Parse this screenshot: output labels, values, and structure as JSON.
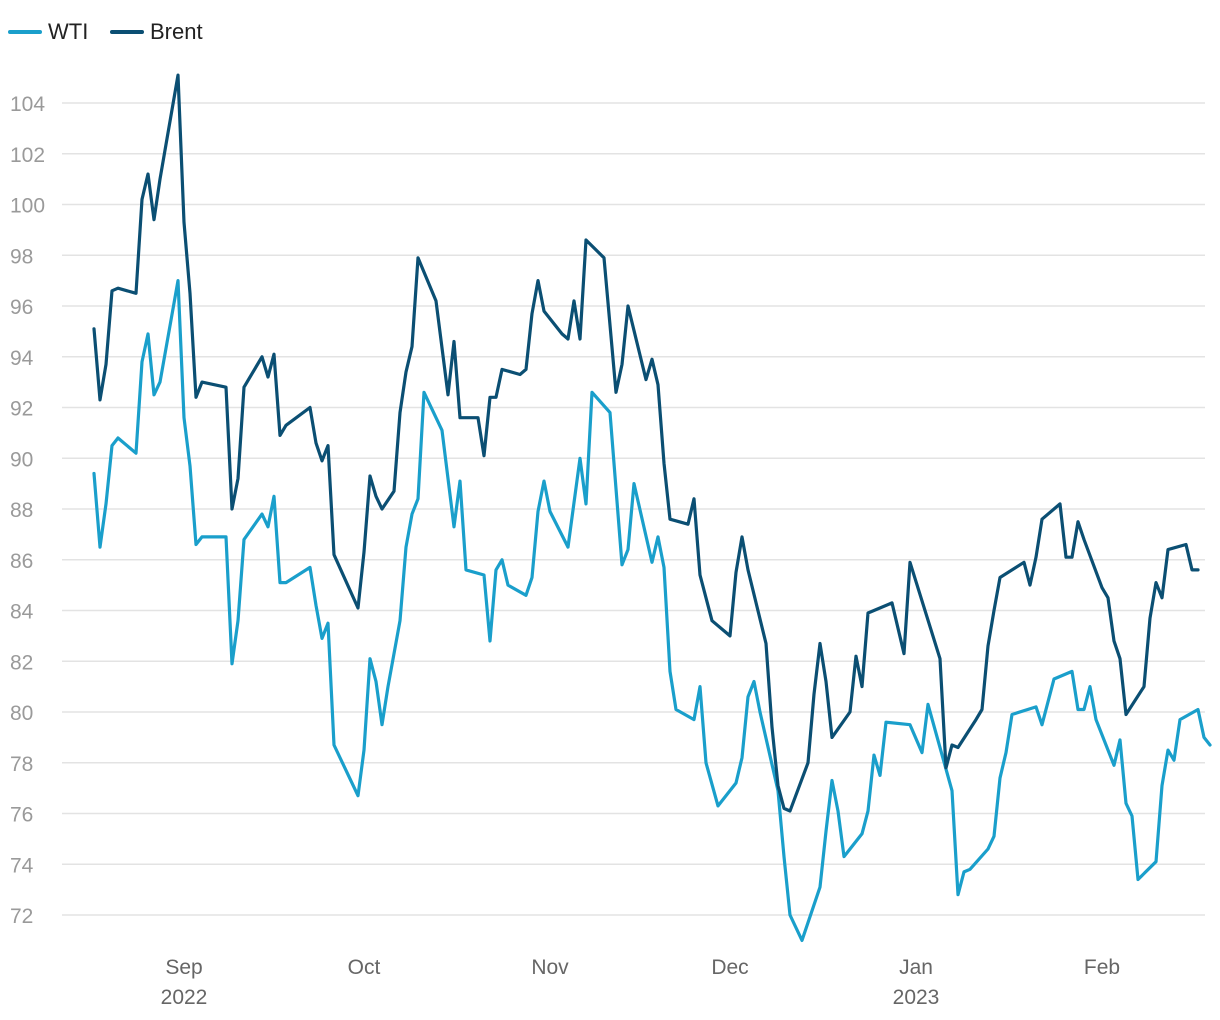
{
  "chart_data": {
    "type": "line",
    "title": "",
    "xlabel": "",
    "ylabel": "",
    "ylim": [
      71,
      106
    ],
    "yticks": [
      72,
      74,
      76,
      78,
      80,
      82,
      84,
      86,
      88,
      90,
      92,
      94,
      96,
      98,
      100,
      102,
      104
    ],
    "grid": true,
    "legend_position": "top-left",
    "x_ticks": [
      {
        "date": "2022-09-01",
        "label": "Sep",
        "sublabel": "2022"
      },
      {
        "date": "2022-10-01",
        "label": "Oct",
        "sublabel": ""
      },
      {
        "date": "2022-11-01",
        "label": "Nov",
        "sublabel": ""
      },
      {
        "date": "2022-12-01",
        "label": "Dec",
        "sublabel": ""
      },
      {
        "date": "2023-01-01",
        "label": "Jan",
        "sublabel": "2023"
      },
      {
        "date": "2023-02-01",
        "label": "Feb",
        "sublabel": ""
      }
    ],
    "x_start": "2022-08-15",
    "x_end": "2023-02-21",
    "series": [
      {
        "name": "WTI",
        "color": "#1a9fcb",
        "points": [
          [
            "2022-08-17",
            89.4
          ],
          [
            "2022-08-18",
            86.5
          ],
          [
            "2022-08-19",
            88.2
          ],
          [
            "2022-08-20",
            90.5
          ],
          [
            "2022-08-21",
            90.8
          ],
          [
            "2022-08-24",
            90.2
          ],
          [
            "2022-08-25",
            93.8
          ],
          [
            "2022-08-26",
            94.9
          ],
          [
            "2022-08-27",
            92.5
          ],
          [
            "2022-08-28",
            93.0
          ],
          [
            "2022-08-31",
            97.0
          ],
          [
            "2022-09-01",
            91.6
          ],
          [
            "2022-09-02",
            89.7
          ],
          [
            "2022-09-03",
            86.6
          ],
          [
            "2022-09-04",
            86.9
          ],
          [
            "2022-09-08",
            86.9
          ],
          [
            "2022-09-09",
            81.9
          ],
          [
            "2022-09-10",
            83.6
          ],
          [
            "2022-09-11",
            86.8
          ],
          [
            "2022-09-14",
            87.8
          ],
          [
            "2022-09-15",
            87.3
          ],
          [
            "2022-09-16",
            88.5
          ],
          [
            "2022-09-17",
            85.1
          ],
          [
            "2022-09-18",
            85.1
          ],
          [
            "2022-09-22",
            85.7
          ],
          [
            "2022-09-23",
            84.2
          ],
          [
            "2022-09-24",
            82.9
          ],
          [
            "2022-09-25",
            83.5
          ],
          [
            "2022-09-26",
            78.7
          ],
          [
            "2022-09-30",
            76.7
          ],
          [
            "2022-10-01",
            78.5
          ],
          [
            "2022-10-02",
            82.1
          ],
          [
            "2022-10-03",
            81.2
          ],
          [
            "2022-10-04",
            79.5
          ],
          [
            "2022-10-05",
            81.0
          ],
          [
            "2022-10-07",
            83.6
          ],
          [
            "2022-10-08",
            86.5
          ],
          [
            "2022-10-09",
            87.8
          ],
          [
            "2022-10-10",
            88.4
          ],
          [
            "2022-10-11",
            92.6
          ],
          [
            "2022-10-14",
            91.1
          ],
          [
            "2022-10-16",
            87.3
          ],
          [
            "2022-10-17",
            89.1
          ],
          [
            "2022-10-18",
            85.6
          ],
          [
            "2022-10-21",
            85.4
          ],
          [
            "2022-10-22",
            82.8
          ],
          [
            "2022-10-23",
            85.6
          ],
          [
            "2022-10-24",
            86.0
          ],
          [
            "2022-10-25",
            85.0
          ],
          [
            "2022-10-28",
            84.6
          ],
          [
            "2022-10-29",
            85.3
          ],
          [
            "2022-10-30",
            87.9
          ],
          [
            "2022-10-31",
            89.1
          ],
          [
            "2022-11-01",
            87.9
          ],
          [
            "2022-11-04",
            86.5
          ],
          [
            "2022-11-06",
            90.0
          ],
          [
            "2022-11-07",
            88.2
          ],
          [
            "2022-11-08",
            92.6
          ],
          [
            "2022-11-11",
            91.8
          ],
          [
            "2022-11-13",
            85.8
          ],
          [
            "2022-11-14",
            86.4
          ],
          [
            "2022-11-15",
            89.0
          ],
          [
            "2022-11-18",
            85.9
          ],
          [
            "2022-11-19",
            86.9
          ],
          [
            "2022-11-20",
            85.7
          ],
          [
            "2022-11-21",
            81.6
          ],
          [
            "2022-11-22",
            80.1
          ],
          [
            "2022-11-25",
            79.7
          ],
          [
            "2022-11-26",
            81.0
          ],
          [
            "2022-11-27",
            78.0
          ],
          [
            "2022-11-29",
            76.3
          ],
          [
            "2022-12-02",
            77.2
          ],
          [
            "2022-12-03",
            78.2
          ],
          [
            "2022-12-04",
            80.6
          ],
          [
            "2022-12-05",
            81.2
          ],
          [
            "2022-12-06",
            80.0
          ],
          [
            "2022-12-09",
            76.9
          ],
          [
            "2022-12-10",
            74.3
          ],
          [
            "2022-12-11",
            72.0
          ],
          [
            "2022-12-13",
            71.0
          ],
          [
            "2022-12-16",
            73.1
          ],
          [
            "2022-12-17",
            75.3
          ],
          [
            "2022-12-18",
            77.3
          ],
          [
            "2022-12-19",
            76.1
          ],
          [
            "2022-12-20",
            74.3
          ],
          [
            "2022-12-23",
            75.2
          ],
          [
            "2022-12-24",
            76.1
          ],
          [
            "2022-12-25",
            78.3
          ],
          [
            "2022-12-26",
            77.5
          ],
          [
            "2022-12-27",
            79.6
          ],
          [
            "2022-12-31",
            79.5
          ],
          [
            "2023-01-02",
            78.4
          ],
          [
            "2023-01-03",
            80.3
          ],
          [
            "2023-01-07",
            76.9
          ],
          [
            "2023-01-08",
            72.8
          ],
          [
            "2023-01-09",
            73.7
          ],
          [
            "2023-01-10",
            73.8
          ],
          [
            "2023-01-13",
            74.6
          ],
          [
            "2023-01-14",
            75.1
          ],
          [
            "2023-01-15",
            77.4
          ],
          [
            "2023-01-16",
            78.4
          ],
          [
            "2023-01-17",
            79.9
          ],
          [
            "2023-01-21",
            80.2
          ],
          [
            "2023-01-22",
            79.5
          ],
          [
            "2023-01-24",
            81.3
          ],
          [
            "2023-01-27",
            81.6
          ],
          [
            "2023-01-28",
            80.1
          ],
          [
            "2023-01-29",
            80.1
          ],
          [
            "2023-01-30",
            81.0
          ],
          [
            "2023-01-31",
            79.7
          ],
          [
            "2023-02-03",
            77.9
          ],
          [
            "2023-02-04",
            78.9
          ],
          [
            "2023-02-05",
            76.4
          ],
          [
            "2023-02-06",
            75.9
          ],
          [
            "2023-02-07",
            73.4
          ],
          [
            "2023-02-10",
            74.1
          ],
          [
            "2023-02-11",
            77.1
          ],
          [
            "2023-02-12",
            78.5
          ],
          [
            "2023-02-13",
            78.1
          ],
          [
            "2023-02-14",
            79.7
          ],
          [
            "2023-02-17",
            80.1
          ],
          [
            "2023-02-18",
            79.0
          ],
          [
            "2023-02-19",
            78.7
          ]
        ]
      },
      {
        "name": "Brent",
        "color": "#0b4f73",
        "points": [
          [
            "2022-08-17",
            95.1
          ],
          [
            "2022-08-18",
            92.3
          ],
          [
            "2022-08-19",
            93.7
          ],
          [
            "2022-08-20",
            96.6
          ],
          [
            "2022-08-21",
            96.7
          ],
          [
            "2022-08-24",
            96.5
          ],
          [
            "2022-08-25",
            100.2
          ],
          [
            "2022-08-26",
            101.2
          ],
          [
            "2022-08-27",
            99.4
          ],
          [
            "2022-08-28",
            101.0
          ],
          [
            "2022-08-31",
            105.1
          ],
          [
            "2022-09-01",
            99.3
          ],
          [
            "2022-09-02",
            96.5
          ],
          [
            "2022-09-03",
            92.4
          ],
          [
            "2022-09-04",
            93.0
          ],
          [
            "2022-09-08",
            92.8
          ],
          [
            "2022-09-09",
            88.0
          ],
          [
            "2022-09-10",
            89.2
          ],
          [
            "2022-09-11",
            92.8
          ],
          [
            "2022-09-14",
            94.0
          ],
          [
            "2022-09-15",
            93.2
          ],
          [
            "2022-09-16",
            94.1
          ],
          [
            "2022-09-17",
            90.9
          ],
          [
            "2022-09-18",
            91.3
          ],
          [
            "2022-09-22",
            92.0
          ],
          [
            "2022-09-23",
            90.6
          ],
          [
            "2022-09-24",
            89.9
          ],
          [
            "2022-09-25",
            90.5
          ],
          [
            "2022-09-26",
            86.2
          ],
          [
            "2022-09-30",
            84.1
          ],
          [
            "2022-10-01",
            86.3
          ],
          [
            "2022-10-02",
            89.3
          ],
          [
            "2022-10-03",
            88.5
          ],
          [
            "2022-10-04",
            88.0
          ],
          [
            "2022-10-06",
            88.7
          ],
          [
            "2022-10-07",
            91.8
          ],
          [
            "2022-10-08",
            93.4
          ],
          [
            "2022-10-09",
            94.4
          ],
          [
            "2022-10-10",
            97.9
          ],
          [
            "2022-10-13",
            96.2
          ],
          [
            "2022-10-15",
            92.5
          ],
          [
            "2022-10-16",
            94.6
          ],
          [
            "2022-10-17",
            91.6
          ],
          [
            "2022-10-20",
            91.6
          ],
          [
            "2022-10-21",
            90.1
          ],
          [
            "2022-10-22",
            92.4
          ],
          [
            "2022-10-23",
            92.4
          ],
          [
            "2022-10-24",
            93.5
          ],
          [
            "2022-10-27",
            93.3
          ],
          [
            "2022-10-28",
            93.5
          ],
          [
            "2022-10-29",
            95.7
          ],
          [
            "2022-10-30",
            97.0
          ],
          [
            "2022-10-31",
            95.8
          ],
          [
            "2022-11-03",
            94.9
          ],
          [
            "2022-11-04",
            94.7
          ],
          [
            "2022-11-05",
            96.2
          ],
          [
            "2022-11-06",
            94.7
          ],
          [
            "2022-11-07",
            98.6
          ],
          [
            "2022-11-10",
            97.9
          ],
          [
            "2022-11-12",
            92.6
          ],
          [
            "2022-11-13",
            93.7
          ],
          [
            "2022-11-14",
            96.0
          ],
          [
            "2022-11-17",
            93.1
          ],
          [
            "2022-11-18",
            93.9
          ],
          [
            "2022-11-19",
            92.9
          ],
          [
            "2022-11-20",
            89.8
          ],
          [
            "2022-11-21",
            87.6
          ],
          [
            "2022-11-24",
            87.4
          ],
          [
            "2022-11-25",
            88.4
          ],
          [
            "2022-11-26",
            85.4
          ],
          [
            "2022-11-28",
            83.6
          ],
          [
            "2022-12-01",
            83.0
          ],
          [
            "2022-12-02",
            85.5
          ],
          [
            "2022-12-03",
            86.9
          ],
          [
            "2022-12-04",
            85.6
          ],
          [
            "2022-12-07",
            82.7
          ],
          [
            "2022-12-08",
            79.4
          ],
          [
            "2022-12-09",
            77.1
          ],
          [
            "2022-12-10",
            76.2
          ],
          [
            "2022-12-11",
            76.1
          ],
          [
            "2022-12-14",
            78.0
          ],
          [
            "2022-12-15",
            80.7
          ],
          [
            "2022-12-16",
            82.7
          ],
          [
            "2022-12-17",
            81.2
          ],
          [
            "2022-12-18",
            79.0
          ],
          [
            "2022-12-21",
            80.0
          ],
          [
            "2022-12-22",
            82.2
          ],
          [
            "2022-12-23",
            81.0
          ],
          [
            "2022-12-24",
            83.9
          ],
          [
            "2022-12-28",
            84.3
          ],
          [
            "2022-12-30",
            82.3
          ],
          [
            "2022-12-31",
            85.9
          ],
          [
            "2023-01-05",
            82.1
          ],
          [
            "2023-01-06",
            77.8
          ],
          [
            "2023-01-07",
            78.7
          ],
          [
            "2023-01-08",
            78.6
          ],
          [
            "2023-01-11",
            79.7
          ],
          [
            "2023-01-12",
            80.1
          ],
          [
            "2023-01-13",
            82.6
          ],
          [
            "2023-01-14",
            84.0
          ],
          [
            "2023-01-15",
            85.3
          ],
          [
            "2023-01-19",
            85.9
          ],
          [
            "2023-01-20",
            85.0
          ],
          [
            "2023-01-21",
            86.1
          ],
          [
            "2023-01-22",
            87.6
          ],
          [
            "2023-01-25",
            88.2
          ],
          [
            "2023-01-26",
            86.1
          ],
          [
            "2023-01-27",
            86.1
          ],
          [
            "2023-01-28",
            87.5
          ],
          [
            "2023-01-29",
            86.8
          ],
          [
            "2023-02-01",
            84.9
          ],
          [
            "2023-02-02",
            84.5
          ],
          [
            "2023-02-03",
            82.8
          ],
          [
            "2023-02-04",
            82.1
          ],
          [
            "2023-02-05",
            79.9
          ],
          [
            "2023-02-08",
            81.0
          ],
          [
            "2023-02-09",
            83.7
          ],
          [
            "2023-02-10",
            85.1
          ],
          [
            "2023-02-11",
            84.5
          ],
          [
            "2023-02-12",
            86.4
          ],
          [
            "2023-02-15",
            86.6
          ],
          [
            "2023-02-16",
            85.6
          ],
          [
            "2023-02-17",
            85.6
          ]
        ]
      }
    ]
  }
}
